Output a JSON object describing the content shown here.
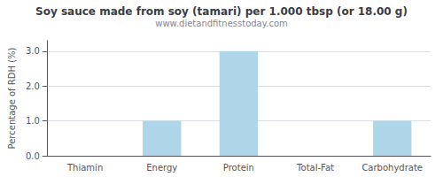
{
  "chart_data": {
    "type": "bar",
    "title": "Soy sauce made from soy (tamari) per 1.000 tbsp (or 18.00 g)",
    "subtitle": "www.dietandfitnesstoday.com",
    "categories": [
      "Thiamin",
      "Energy",
      "Protein",
      "Total-Fat",
      "Carbohydrate"
    ],
    "values": [
      0.0,
      1.0,
      3.0,
      0.0,
      1.0
    ],
    "color": "#aed6e8",
    "ylabel": "Percentage of RDH (%)",
    "ylim": [
      0,
      3.3
    ],
    "yticks": [
      {
        "value": 0.0,
        "label": "0.0"
      },
      {
        "value": 1.0,
        "label": "1.0"
      },
      {
        "value": 2.0,
        "label": "2.0"
      },
      {
        "value": 3.0,
        "label": "3.0"
      }
    ],
    "grid": true
  }
}
